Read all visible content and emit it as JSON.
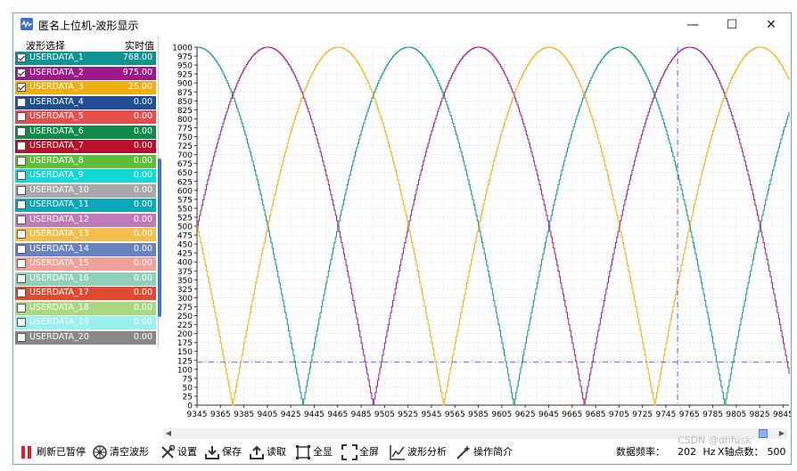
{
  "window": {
    "title": "匿名上位机-波形显示",
    "minimize": "—",
    "maximize": "☐",
    "close": "✕"
  },
  "sidebar": {
    "header_select": "波形选择",
    "header_value": "实时值",
    "items": [
      {
        "label": "USERDATA_1",
        "value": "768.00",
        "checked": true,
        "color": "#0f9292"
      },
      {
        "label": "USERDATA_2",
        "value": "975.00",
        "checked": true,
        "color": "#9b1a87"
      },
      {
        "label": "USERDATA_3",
        "value": "25.00",
        "checked": true,
        "color": "#f0ae10"
      },
      {
        "label": "USERDATA_4",
        "value": "0.00",
        "checked": false,
        "color": "#1f4e92"
      },
      {
        "label": "USERDATA_5",
        "value": "0.00",
        "checked": false,
        "color": "#e84d4d"
      },
      {
        "label": "USERDATA_6",
        "value": "0.00",
        "checked": false,
        "color": "#0f8a4a"
      },
      {
        "label": "USERDATA_7",
        "value": "0.00",
        "checked": false,
        "color": "#b8102a"
      },
      {
        "label": "USERDATA_8",
        "value": "0.00",
        "checked": false,
        "color": "#5fbf3a"
      },
      {
        "label": "USERDATA_9",
        "value": "0.00",
        "checked": false,
        "color": "#10d8d8"
      },
      {
        "label": "USERDATA_10",
        "value": "0.00",
        "checked": false,
        "color": "#a8a8a8"
      },
      {
        "label": "USERDATA_11",
        "value": "0.00",
        "checked": false,
        "color": "#0aa8b8"
      },
      {
        "label": "USERDATA_12",
        "value": "0.00",
        "checked": false,
        "color": "#c07ab8"
      },
      {
        "label": "USERDATA_13",
        "value": "0.00",
        "checked": false,
        "color": "#f2c04a"
      },
      {
        "label": "USERDATA_14",
        "value": "0.00",
        "checked": false,
        "color": "#6a82c0"
      },
      {
        "label": "USERDATA_15",
        "value": "0.00",
        "checked": false,
        "color": "#f2a09a"
      },
      {
        "label": "USERDATA_16",
        "value": "0.00",
        "checked": false,
        "color": "#8fd0b8"
      },
      {
        "label": "USERDATA_17",
        "value": "0.00",
        "checked": false,
        "color": "#e04a30"
      },
      {
        "label": "USERDATA_18",
        "value": "0.00",
        "checked": false,
        "color": "#a8d880"
      },
      {
        "label": "USERDATA_19",
        "value": "0.00",
        "checked": false,
        "color": "#9af0f0"
      },
      {
        "label": "USERDATA_20",
        "value": "0.00",
        "checked": false,
        "color": "#888888"
      }
    ]
  },
  "toolbar": {
    "pause": "刷新已暂停",
    "clear": "清空波形",
    "settings": "设置",
    "save": "保存",
    "load": "读取",
    "fit": "全显",
    "fullscreen": "全屏",
    "analysis": "波形分析",
    "help": "操作简介"
  },
  "status": {
    "rate": "数据频率：",
    "rate_value": "202",
    "rate_unit": "Hz",
    "points": "X轴点数：",
    "points_value": "500"
  },
  "watermark": "CSDN @dhfusk",
  "chart_data": {
    "type": "line",
    "y_ticks": [
      "0",
      "25",
      "50",
      "75",
      "100",
      "125",
      "150",
      "175",
      "200",
      "225",
      "250",
      "275",
      "300",
      "325",
      "350",
      "375",
      "400",
      "425",
      "450",
      "475",
      "500",
      "525",
      "550",
      "575",
      "600",
      "625",
      "650",
      "675",
      "700",
      "725",
      "750",
      "775",
      "800",
      "825",
      "850",
      "875",
      "900",
      "925",
      "950",
      "975",
      "1000"
    ],
    "x_ticks": [
      "9345",
      "9365",
      "9385",
      "9405",
      "9425",
      "9445",
      "9465",
      "9485",
      "9505",
      "9525",
      "9545",
      "9565",
      "9585",
      "9605",
      "9625",
      "9645",
      "9665",
      "9685",
      "9705",
      "9725",
      "9745",
      "9765",
      "9785",
      "9805",
      "9825",
      "9845"
    ],
    "xlim": [
      9345,
      9850
    ],
    "ylim": [
      0,
      1000
    ],
    "cursor": {
      "x": 9755,
      "y": 120
    },
    "period": 360,
    "series": [
      {
        "color": "#0f9292",
        "phase_deg": 0
      },
      {
        "color": "#9b1a87",
        "phase_deg": 120
      },
      {
        "color": "#f0ae10",
        "phase_deg": 240
      }
    ]
  }
}
